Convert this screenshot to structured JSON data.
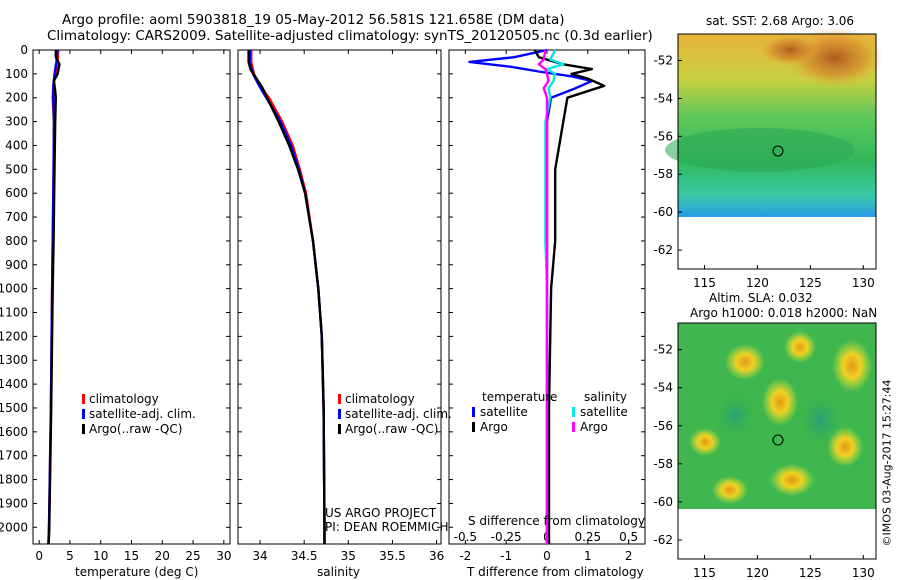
{
  "header": {
    "line1": "Argo profile: aoml 5903818_19 05-May-2012 56.581S 121.658E (DM data)",
    "line2": "Climatology: CARS2009. Satellite-adjusted climatology: synTS_20120505.nc (0.3d earlier)"
  },
  "credits": {
    "line1": "US ARGO PROJECT",
    "line2": "PI: DEAN ROEMMICH"
  },
  "stamp": "©IMOS 03-Aug-2017 15:27:44",
  "colors": {
    "climatology": "#ff0000",
    "satellite": "#0000ff",
    "argo": "#000000",
    "sat_salinity": "#00e5e5",
    "argo_salinity": "#ff00ff"
  },
  "chart_data": [
    {
      "type": "line",
      "id": "temperature",
      "xlabel": "temperature (deg C)",
      "xlim": [
        -1,
        31
      ],
      "xticks": [
        0,
        5,
        10,
        15,
        20,
        25,
        30
      ],
      "ylim": [
        2070,
        0
      ],
      "yticks": [
        0,
        100,
        200,
        300,
        400,
        500,
        600,
        700,
        800,
        900,
        1000,
        1100,
        1200,
        1300,
        1400,
        1500,
        1600,
        1700,
        1800,
        1900,
        2000
      ],
      "legend": [
        "climatology",
        "satellite-adj. clim.",
        "Argo(..raw -QC)"
      ],
      "legend_position": "lower-center",
      "series": [
        {
          "name": "climatology",
          "color": "#ff0000",
          "depth": [
            0,
            50,
            100,
            150,
            200,
            300,
            500,
            800,
            1000,
            1500,
            2000,
            2070
          ],
          "values": [
            3.1,
            3.0,
            2.6,
            2.3,
            2.2,
            2.4,
            2.35,
            2.2,
            2.1,
            1.9,
            1.6,
            1.5
          ]
        },
        {
          "name": "satellite-adj. clim.",
          "color": "#0000ff",
          "depth": [
            0,
            50,
            100,
            150,
            200,
            300,
            500,
            800,
            1000,
            1500,
            2000,
            2070
          ],
          "values": [
            3.0,
            2.8,
            2.5,
            2.3,
            2.3,
            2.4,
            2.35,
            2.2,
            2.1,
            1.9,
            1.6,
            1.5
          ]
        },
        {
          "name": "Argo(..raw -QC)",
          "color": "#000000",
          "depth": [
            0,
            30,
            60,
            100,
            130,
            170,
            200,
            300,
            500,
            800,
            1000,
            1500,
            2000,
            2070
          ],
          "values": [
            2.7,
            2.7,
            3.3,
            3.0,
            2.4,
            2.6,
            2.7,
            2.6,
            2.5,
            2.35,
            2.2,
            1.95,
            1.65,
            1.55
          ]
        }
      ]
    },
    {
      "type": "line",
      "id": "salinity",
      "xlabel": "salinity",
      "xlim": [
        33.75,
        36.05
      ],
      "xticks": [
        34,
        34.5,
        35,
        35.5,
        36
      ],
      "ylim": [
        2070,
        0
      ],
      "legend": [
        "climatology",
        "satellite-adj. clim.",
        "Argo(..raw -QC)"
      ],
      "legend_position": "lower-right",
      "series": [
        {
          "name": "climatology",
          "color": "#ff0000",
          "depth": [
            0,
            50,
            100,
            150,
            200,
            300,
            400,
            500,
            600,
            800,
            1000,
            1200,
            1500,
            2000,
            2070
          ],
          "values": [
            33.9,
            33.9,
            33.93,
            34.0,
            34.1,
            34.25,
            34.37,
            34.45,
            34.52,
            34.6,
            34.66,
            34.7,
            34.72,
            34.73,
            34.73
          ]
        },
        {
          "name": "satellite-adj. clim.",
          "color": "#0000ff",
          "depth": [
            0,
            50,
            100,
            150,
            200,
            300,
            400,
            500,
            600,
            800,
            1000,
            1200,
            1500,
            2000,
            2070
          ],
          "values": [
            33.89,
            33.88,
            33.92,
            33.99,
            34.07,
            34.23,
            34.35,
            34.44,
            34.51,
            34.6,
            34.66,
            34.7,
            34.72,
            34.73,
            34.73
          ]
        },
        {
          "name": "Argo(..raw -QC)",
          "color": "#000000",
          "depth": [
            0,
            50,
            80,
            120,
            160,
            200,
            300,
            400,
            500,
            600,
            800,
            1000,
            1200,
            1500,
            2000,
            2070
          ],
          "values": [
            33.87,
            33.87,
            33.89,
            33.96,
            34.03,
            34.08,
            34.21,
            34.33,
            34.43,
            34.51,
            34.6,
            34.66,
            34.7,
            34.72,
            34.73,
            34.73
          ]
        }
      ]
    },
    {
      "type": "line",
      "id": "differences",
      "xlabel_bottom": "T difference from climatology",
      "xlim_bottom": [
        -2.4,
        2.4
      ],
      "xticks_bottom": [
        -2,
        -1,
        0,
        1,
        2
      ],
      "xlabel_top": "S difference from climatology",
      "xlim_top": [
        -0.6,
        0.6
      ],
      "xticks_top": [
        -0.5,
        -0.25,
        0,
        0.25,
        0.5
      ],
      "xtick_labels_top": [
        "-0.5",
        "-0.25",
        "0",
        "0.25",
        "0.5"
      ],
      "ylim": [
        2070,
        0
      ],
      "legend_headers": [
        "temperature",
        "salinity"
      ],
      "legend": [
        "satellite",
        "Argo",
        "satellite",
        "Argo"
      ],
      "legend_position": "lower-center",
      "series": [
        {
          "name": "temperature satellite",
          "color": "#0000ff",
          "axis": "bottom",
          "depth": [
            0,
            30,
            50,
            70,
            90,
            110,
            130,
            160,
            200,
            300,
            500,
            1000,
            1500,
            2000,
            2070
          ],
          "values": [
            0.0,
            -0.8,
            -1.9,
            -0.9,
            -0.2,
            0.6,
            1.1,
            0.7,
            0.1,
            0.0,
            0.0,
            0.0,
            0.0,
            0.0,
            0.0
          ]
        },
        {
          "name": "temperature Argo",
          "color": "#000000",
          "axis": "bottom",
          "depth": [
            0,
            30,
            60,
            80,
            100,
            120,
            150,
            200,
            300,
            500,
            800,
            1000,
            1500,
            2000,
            2070
          ],
          "values": [
            -0.3,
            -0.2,
            0.4,
            1.1,
            0.6,
            1.0,
            1.4,
            0.5,
            0.4,
            0.2,
            0.2,
            0.1,
            0.05,
            0.05,
            0.05
          ]
        },
        {
          "name": "salinity satellite",
          "color": "#00e5e5",
          "axis": "top",
          "depth": [
            0,
            40,
            60,
            80,
            100,
            130,
            160,
            200,
            300,
            500,
            800,
            1000,
            1500,
            2000,
            2070
          ],
          "values": [
            0.05,
            0.02,
            0.1,
            0.0,
            0.05,
            0.04,
            0.01,
            0.02,
            -0.01,
            -0.01,
            -0.01,
            0.0,
            0.0,
            0.0,
            0.0
          ]
        },
        {
          "name": "salinity Argo",
          "color": "#ff00ff",
          "axis": "top",
          "depth": [
            0,
            40,
            60,
            80,
            100,
            130,
            160,
            200,
            300,
            500,
            800,
            1000,
            1500,
            2000,
            2070
          ],
          "values": [
            -0.01,
            -0.02,
            -0.05,
            -0.01,
            0.0,
            0.01,
            -0.02,
            0.0,
            0.0,
            0.0,
            0.0,
            0.0,
            0.0,
            0.0,
            0.0
          ]
        }
      ]
    },
    {
      "type": "heatmap",
      "id": "sst-map",
      "title": "sat. SST: 2.68 Argo: 3.06",
      "xlim": [
        112.5,
        131.2
      ],
      "xticks": [
        115,
        120,
        125,
        130
      ],
      "ylim": [
        -63,
        -50.6
      ],
      "yticks": [
        -52,
        -54,
        -56,
        -58,
        -60,
        -62
      ],
      "data_extent_south": -60,
      "marker": {
        "lon": 121.658,
        "lat": -56.581
      }
    },
    {
      "type": "heatmap",
      "id": "sla-map",
      "title_line1": "Altim. SLA: 0.032",
      "title_line2": "Argo h1000: 0.018 h2000: NaN",
      "xlim": [
        112.5,
        131.2
      ],
      "xticks": [
        115,
        120,
        125,
        130
      ],
      "ylim": [
        -63,
        -50.6
      ],
      "yticks": [
        -52,
        -54,
        -56,
        -58,
        -60,
        -62
      ],
      "data_extent_south": -60,
      "marker": {
        "lon": 121.658,
        "lat": -56.581
      }
    }
  ]
}
